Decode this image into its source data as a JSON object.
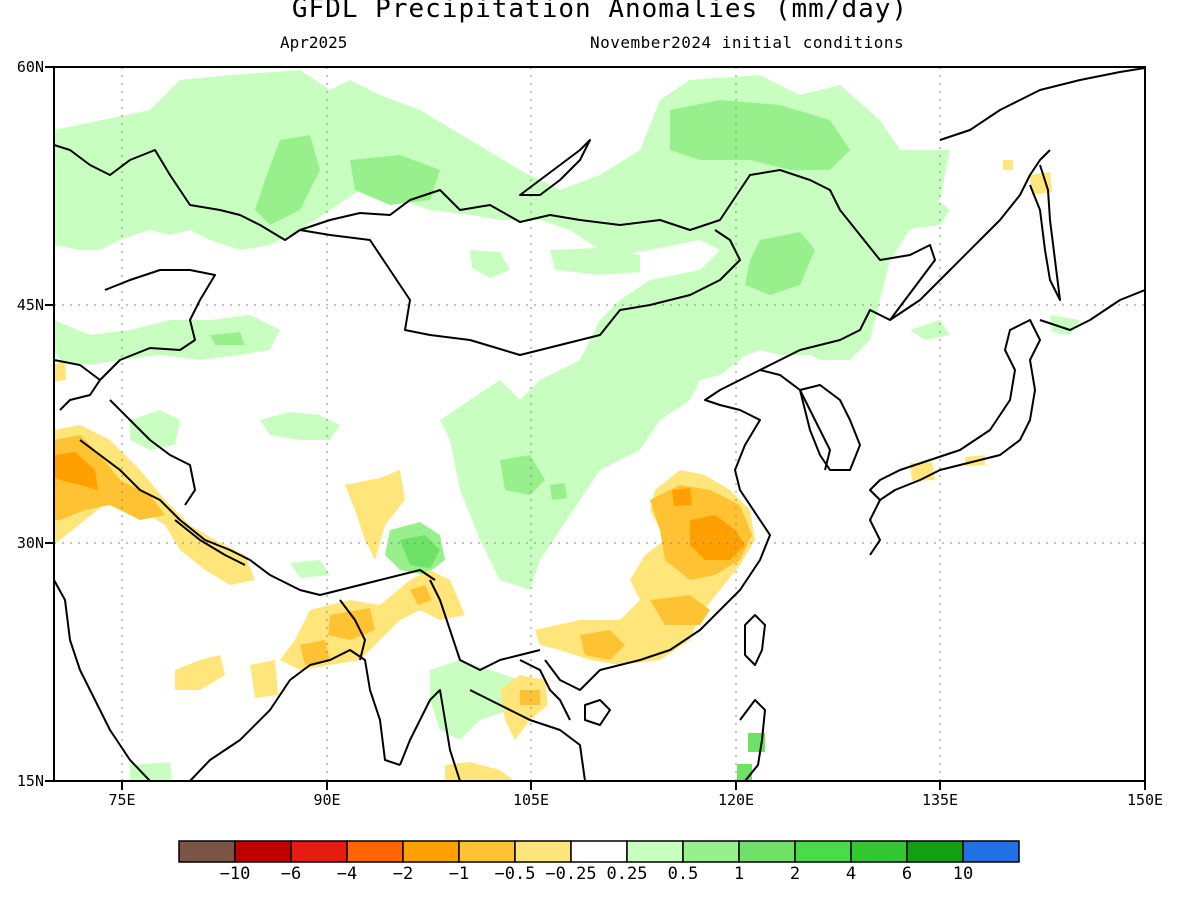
{
  "header": {
    "title": "GFDL Precipitation Anomalies (mm/day)",
    "month": "Apr2025",
    "init": "November2024 initial conditions"
  },
  "axes": {
    "lat_labels": [
      "60N",
      "45N",
      "30N",
      "15N"
    ],
    "lon_labels": [
      "75E",
      "90E",
      "105E",
      "120E",
      "135E",
      "150E"
    ],
    "lat_range": [
      15,
      60
    ],
    "lon_range": [
      70,
      150
    ]
  },
  "colorbar": {
    "colors": [
      "#7a5545",
      "#c00000",
      "#e41d10",
      "#ff6600",
      "#ff9f00",
      "#ffc233",
      "#ffe57a",
      "#ffffff",
      "#c8ffc0",
      "#98f08c",
      "#6ee266",
      "#48dc48",
      "#32c832",
      "#12a012",
      "#2070e6"
    ],
    "labels": [
      "-10",
      "-6",
      "-4",
      "-2",
      "-1",
      "-0.5",
      "-0.25",
      "0.25",
      "0.5",
      "1",
      "2",
      "4",
      "6",
      "10"
    ]
  },
  "map_features": [
    "precipitation-anomaly-patches",
    "coastlines",
    "national-borders",
    "lat-lon-grid"
  ]
}
